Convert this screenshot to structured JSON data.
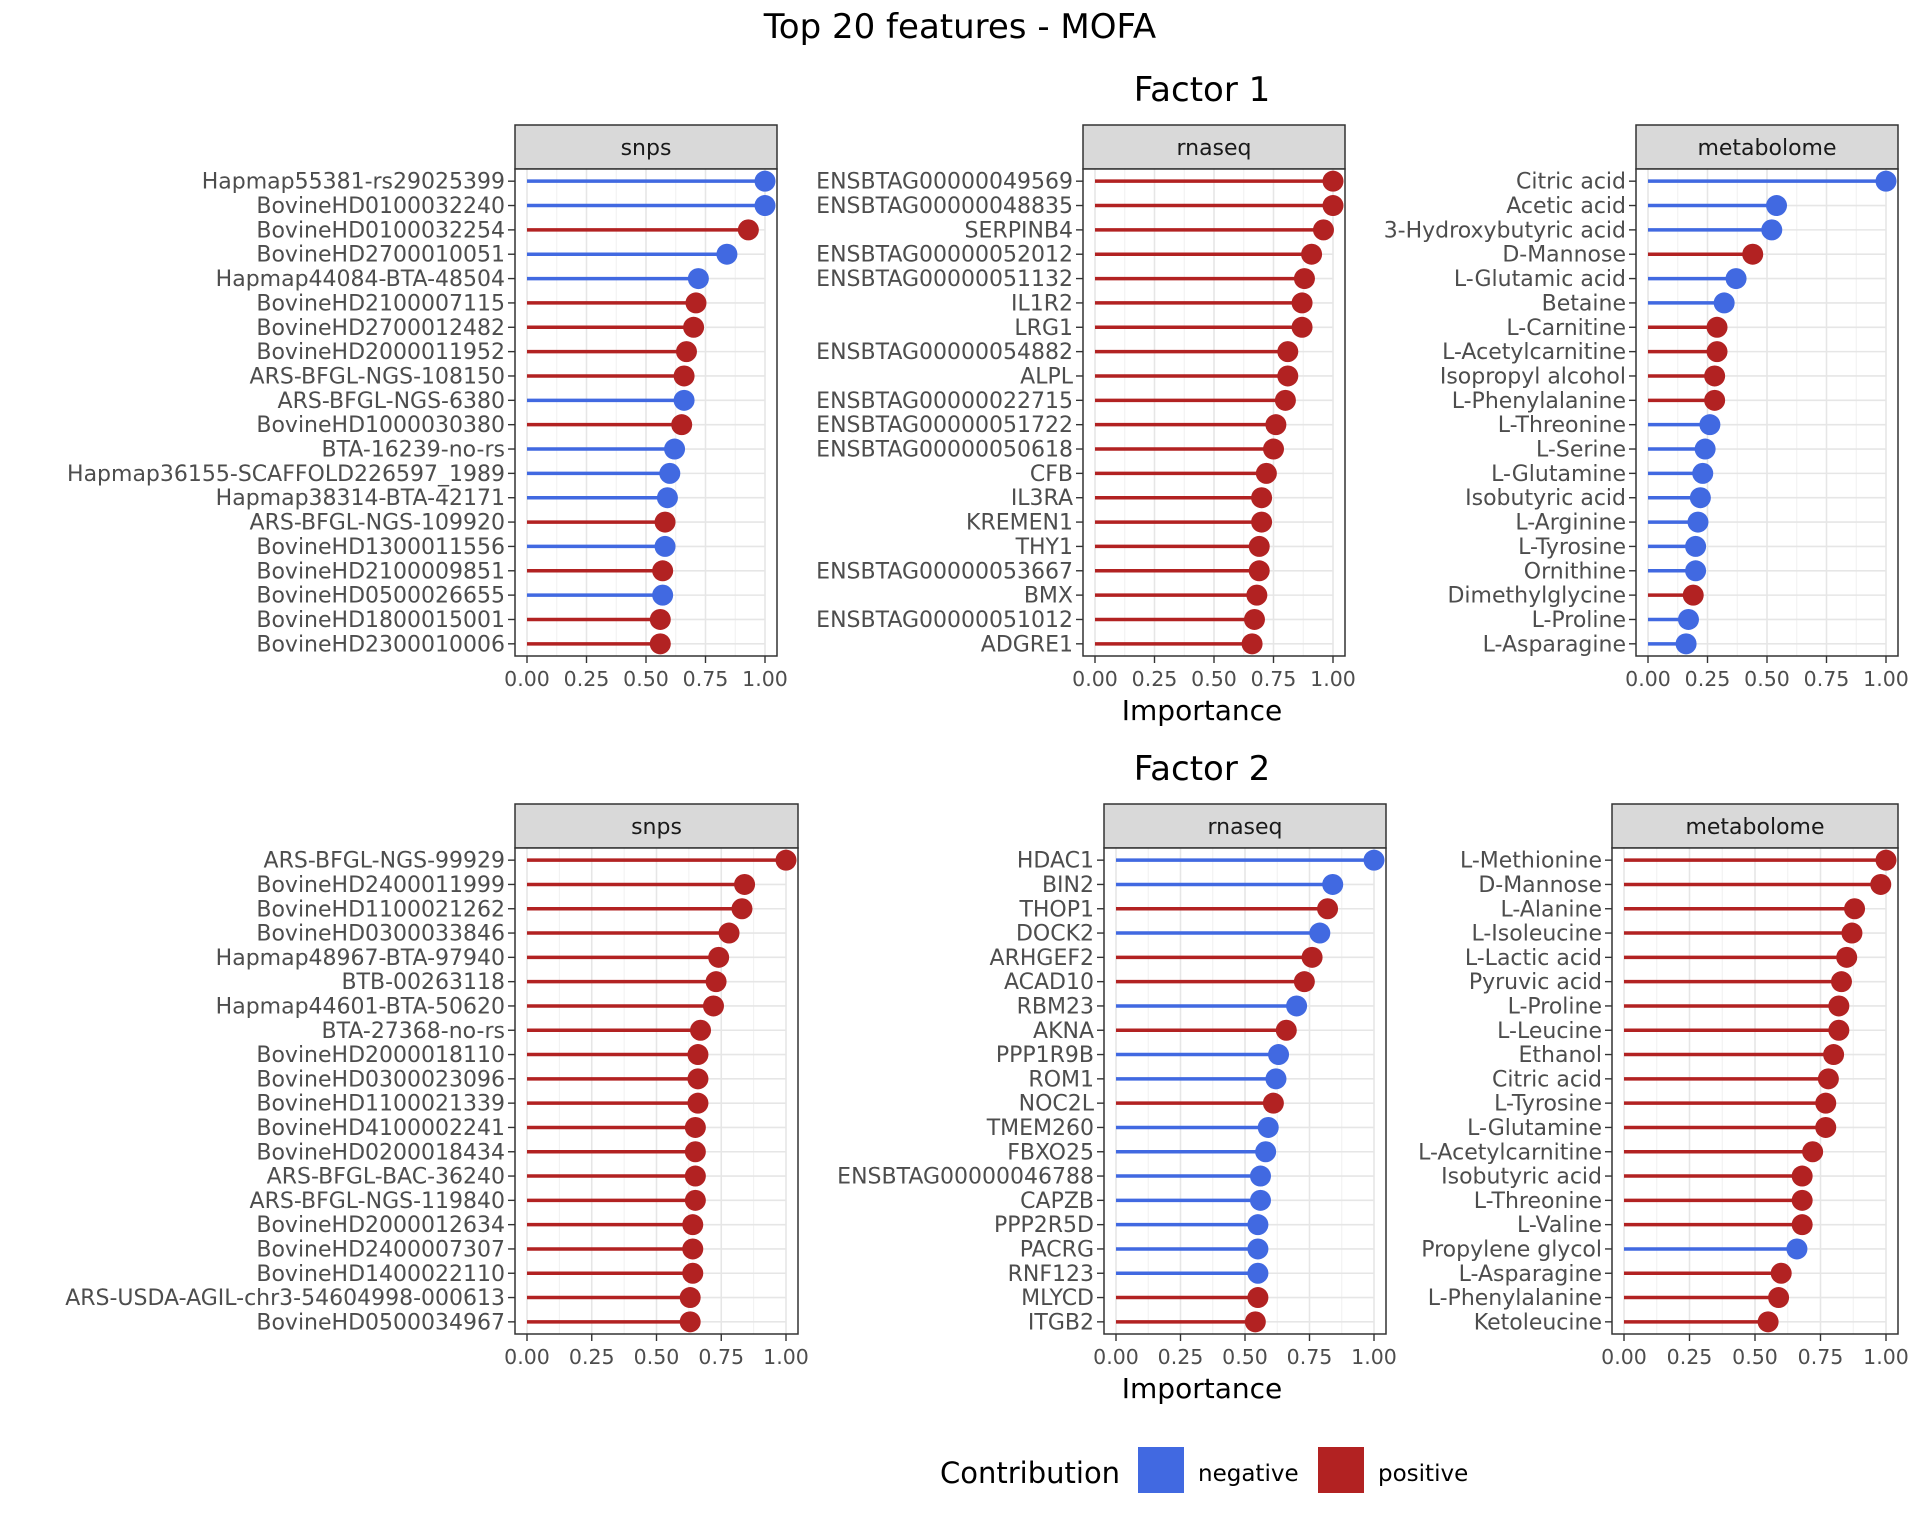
{
  "title": "Top 20 features - MOFA",
  "colors": {
    "negative": "#4169e1",
    "positive": "#b22222"
  },
  "legend": {
    "title": "Contribution",
    "negative_label": "negative",
    "positive_label": "positive"
  },
  "chart_data": [
    {
      "type": "lollipop",
      "factor": "Factor 1",
      "xlabel": "Importance",
      "xlim": [
        0,
        1
      ],
      "ticks": [
        "0.00",
        "0.25",
        "0.50",
        "0.75",
        "1.00"
      ],
      "panels": [
        {
          "name": "snps",
          "features": [
            {
              "label": "Hapmap55381-rs29025399",
              "value": 1.0,
              "sign": "negative"
            },
            {
              "label": "BovineHD0100032240",
              "value": 1.0,
              "sign": "negative"
            },
            {
              "label": "BovineHD0100032254",
              "value": 0.93,
              "sign": "positive"
            },
            {
              "label": "BovineHD2700010051",
              "value": 0.84,
              "sign": "negative"
            },
            {
              "label": "Hapmap44084-BTA-48504",
              "value": 0.72,
              "sign": "negative"
            },
            {
              "label": "BovineHD2100007115",
              "value": 0.71,
              "sign": "positive"
            },
            {
              "label": "BovineHD2700012482",
              "value": 0.7,
              "sign": "positive"
            },
            {
              "label": "BovineHD2000011952",
              "value": 0.67,
              "sign": "positive"
            },
            {
              "label": "ARS-BFGL-NGS-108150",
              "value": 0.66,
              "sign": "positive"
            },
            {
              "label": "ARS-BFGL-NGS-6380",
              "value": 0.66,
              "sign": "negative"
            },
            {
              "label": "BovineHD1000030380",
              "value": 0.65,
              "sign": "positive"
            },
            {
              "label": "BTA-16239-no-rs",
              "value": 0.62,
              "sign": "negative"
            },
            {
              "label": "Hapmap36155-SCAFFOLD226597_1989",
              "value": 0.6,
              "sign": "negative"
            },
            {
              "label": "Hapmap38314-BTA-42171",
              "value": 0.59,
              "sign": "negative"
            },
            {
              "label": "ARS-BFGL-NGS-109920",
              "value": 0.58,
              "sign": "positive"
            },
            {
              "label": "BovineHD1300011556",
              "value": 0.58,
              "sign": "negative"
            },
            {
              "label": "BovineHD2100009851",
              "value": 0.57,
              "sign": "positive"
            },
            {
              "label": "BovineHD0500026655",
              "value": 0.57,
              "sign": "negative"
            },
            {
              "label": "BovineHD1800015001",
              "value": 0.56,
              "sign": "positive"
            },
            {
              "label": "BovineHD2300010006",
              "value": 0.56,
              "sign": "positive"
            }
          ]
        },
        {
          "name": "rnaseq",
          "features": [
            {
              "label": "ENSBTAG00000049569",
              "value": 1.0,
              "sign": "positive"
            },
            {
              "label": "ENSBTAG00000048835",
              "value": 1.0,
              "sign": "positive"
            },
            {
              "label": "SERPINB4",
              "value": 0.96,
              "sign": "positive"
            },
            {
              "label": "ENSBTAG00000052012",
              "value": 0.91,
              "sign": "positive"
            },
            {
              "label": "ENSBTAG00000051132",
              "value": 0.88,
              "sign": "positive"
            },
            {
              "label": "IL1R2",
              "value": 0.87,
              "sign": "positive"
            },
            {
              "label": "LRG1",
              "value": 0.87,
              "sign": "positive"
            },
            {
              "label": "ENSBTAG00000054882",
              "value": 0.81,
              "sign": "positive"
            },
            {
              "label": "ALPL",
              "value": 0.81,
              "sign": "positive"
            },
            {
              "label": "ENSBTAG00000022715",
              "value": 0.8,
              "sign": "positive"
            },
            {
              "label": "ENSBTAG00000051722",
              "value": 0.76,
              "sign": "positive"
            },
            {
              "label": "ENSBTAG00000050618",
              "value": 0.75,
              "sign": "positive"
            },
            {
              "label": "CFB",
              "value": 0.72,
              "sign": "positive"
            },
            {
              "label": "IL3RA",
              "value": 0.7,
              "sign": "positive"
            },
            {
              "label": "KREMEN1",
              "value": 0.7,
              "sign": "positive"
            },
            {
              "label": "THY1",
              "value": 0.69,
              "sign": "positive"
            },
            {
              "label": "ENSBTAG00000053667",
              "value": 0.69,
              "sign": "positive"
            },
            {
              "label": "BMX",
              "value": 0.68,
              "sign": "positive"
            },
            {
              "label": "ENSBTAG00000051012",
              "value": 0.67,
              "sign": "positive"
            },
            {
              "label": "ADGRE1",
              "value": 0.66,
              "sign": "positive"
            }
          ]
        },
        {
          "name": "metabolome",
          "features": [
            {
              "label": "Citric acid",
              "value": 1.0,
              "sign": "negative"
            },
            {
              "label": "Acetic acid",
              "value": 0.54,
              "sign": "negative"
            },
            {
              "label": "3-Hydroxybutyric acid",
              "value": 0.52,
              "sign": "negative"
            },
            {
              "label": "D-Mannose",
              "value": 0.44,
              "sign": "positive"
            },
            {
              "label": "L-Glutamic acid",
              "value": 0.37,
              "sign": "negative"
            },
            {
              "label": "Betaine",
              "value": 0.32,
              "sign": "negative"
            },
            {
              "label": "L-Carnitine",
              "value": 0.29,
              "sign": "positive"
            },
            {
              "label": "L-Acetylcarnitine",
              "value": 0.29,
              "sign": "positive"
            },
            {
              "label": "Isopropyl alcohol",
              "value": 0.28,
              "sign": "positive"
            },
            {
              "label": "L-Phenylalanine",
              "value": 0.28,
              "sign": "positive"
            },
            {
              "label": "L-Threonine",
              "value": 0.26,
              "sign": "negative"
            },
            {
              "label": "L-Serine",
              "value": 0.24,
              "sign": "negative"
            },
            {
              "label": "L-Glutamine",
              "value": 0.23,
              "sign": "negative"
            },
            {
              "label": "Isobutyric acid",
              "value": 0.22,
              "sign": "negative"
            },
            {
              "label": "L-Arginine",
              "value": 0.21,
              "sign": "negative"
            },
            {
              "label": "L-Tyrosine",
              "value": 0.2,
              "sign": "negative"
            },
            {
              "label": "Ornithine",
              "value": 0.2,
              "sign": "negative"
            },
            {
              "label": "Dimethylglycine",
              "value": 0.19,
              "sign": "positive"
            },
            {
              "label": "L-Proline",
              "value": 0.17,
              "sign": "negative"
            },
            {
              "label": "L-Asparagine",
              "value": 0.16,
              "sign": "negative"
            }
          ]
        }
      ]
    },
    {
      "type": "lollipop",
      "factor": "Factor 2",
      "xlabel": "Importance",
      "xlim": [
        0,
        1
      ],
      "ticks": [
        "0.00",
        "0.25",
        "0.50",
        "0.75",
        "1.00"
      ],
      "panels": [
        {
          "name": "snps",
          "features": [
            {
              "label": "ARS-BFGL-NGS-99929",
              "value": 1.0,
              "sign": "positive"
            },
            {
              "label": "BovineHD2400011999",
              "value": 0.84,
              "sign": "positive"
            },
            {
              "label": "BovineHD1100021262",
              "value": 0.83,
              "sign": "positive"
            },
            {
              "label": "BovineHD0300033846",
              "value": 0.78,
              "sign": "positive"
            },
            {
              "label": "Hapmap48967-BTA-97940",
              "value": 0.74,
              "sign": "positive"
            },
            {
              "label": "BTB-00263118",
              "value": 0.73,
              "sign": "positive"
            },
            {
              "label": "Hapmap44601-BTA-50620",
              "value": 0.72,
              "sign": "positive"
            },
            {
              "label": "BTA-27368-no-rs",
              "value": 0.67,
              "sign": "positive"
            },
            {
              "label": "BovineHD2000018110",
              "value": 0.66,
              "sign": "positive"
            },
            {
              "label": "BovineHD0300023096",
              "value": 0.66,
              "sign": "positive"
            },
            {
              "label": "BovineHD1100021339",
              "value": 0.66,
              "sign": "positive"
            },
            {
              "label": "BovineHD4100002241",
              "value": 0.65,
              "sign": "positive"
            },
            {
              "label": "BovineHD0200018434",
              "value": 0.65,
              "sign": "positive"
            },
            {
              "label": "ARS-BFGL-BAC-36240",
              "value": 0.65,
              "sign": "positive"
            },
            {
              "label": "ARS-BFGL-NGS-119840",
              "value": 0.65,
              "sign": "positive"
            },
            {
              "label": "BovineHD2000012634",
              "value": 0.64,
              "sign": "positive"
            },
            {
              "label": "BovineHD2400007307",
              "value": 0.64,
              "sign": "positive"
            },
            {
              "label": "BovineHD1400022110",
              "value": 0.64,
              "sign": "positive"
            },
            {
              "label": "ARS-USDA-AGIL-chr3-54604998-000613",
              "value": 0.63,
              "sign": "positive"
            },
            {
              "label": "BovineHD0500034967",
              "value": 0.63,
              "sign": "positive"
            }
          ]
        },
        {
          "name": "rnaseq",
          "features": [
            {
              "label": "HDAC1",
              "value": 1.0,
              "sign": "negative"
            },
            {
              "label": "BIN2",
              "value": 0.84,
              "sign": "negative"
            },
            {
              "label": "THOP1",
              "value": 0.82,
              "sign": "positive"
            },
            {
              "label": "DOCK2",
              "value": 0.79,
              "sign": "negative"
            },
            {
              "label": "ARHGEF2",
              "value": 0.76,
              "sign": "positive"
            },
            {
              "label": "ACAD10",
              "value": 0.73,
              "sign": "positive"
            },
            {
              "label": "RBM23",
              "value": 0.7,
              "sign": "negative"
            },
            {
              "label": "AKNA",
              "value": 0.66,
              "sign": "positive"
            },
            {
              "label": "PPP1R9B",
              "value": 0.63,
              "sign": "negative"
            },
            {
              "label": "ROM1",
              "value": 0.62,
              "sign": "negative"
            },
            {
              "label": "NOC2L",
              "value": 0.61,
              "sign": "positive"
            },
            {
              "label": "TMEM260",
              "value": 0.59,
              "sign": "negative"
            },
            {
              "label": "FBXO25",
              "value": 0.58,
              "sign": "negative"
            },
            {
              "label": "ENSBTAG00000046788",
              "value": 0.56,
              "sign": "negative"
            },
            {
              "label": "CAPZB",
              "value": 0.56,
              "sign": "negative"
            },
            {
              "label": "PPP2R5D",
              "value": 0.55,
              "sign": "negative"
            },
            {
              "label": "PACRG",
              "value": 0.55,
              "sign": "negative"
            },
            {
              "label": "RNF123",
              "value": 0.55,
              "sign": "negative"
            },
            {
              "label": "MLYCD",
              "value": 0.55,
              "sign": "positive"
            },
            {
              "label": "ITGB2",
              "value": 0.54,
              "sign": "positive"
            }
          ]
        },
        {
          "name": "metabolome",
          "features": [
            {
              "label": "L-Methionine",
              "value": 1.0,
              "sign": "positive"
            },
            {
              "label": "D-Mannose",
              "value": 0.98,
              "sign": "positive"
            },
            {
              "label": "L-Alanine",
              "value": 0.88,
              "sign": "positive"
            },
            {
              "label": "L-Isoleucine",
              "value": 0.87,
              "sign": "positive"
            },
            {
              "label": "L-Lactic acid",
              "value": 0.85,
              "sign": "positive"
            },
            {
              "label": "Pyruvic acid",
              "value": 0.83,
              "sign": "positive"
            },
            {
              "label": "L-Proline",
              "value": 0.82,
              "sign": "positive"
            },
            {
              "label": "L-Leucine",
              "value": 0.82,
              "sign": "positive"
            },
            {
              "label": "Ethanol",
              "value": 0.8,
              "sign": "positive"
            },
            {
              "label": "Citric acid",
              "value": 0.78,
              "sign": "positive"
            },
            {
              "label": "L-Tyrosine",
              "value": 0.77,
              "sign": "positive"
            },
            {
              "label": "L-Glutamine",
              "value": 0.77,
              "sign": "positive"
            },
            {
              "label": "L-Acetylcarnitine",
              "value": 0.72,
              "sign": "positive"
            },
            {
              "label": "Isobutyric acid",
              "value": 0.68,
              "sign": "positive"
            },
            {
              "label": "L-Threonine",
              "value": 0.68,
              "sign": "positive"
            },
            {
              "label": "L-Valine",
              "value": 0.68,
              "sign": "positive"
            },
            {
              "label": "Propylene glycol",
              "value": 0.66,
              "sign": "negative"
            },
            {
              "label": "L-Asparagine",
              "value": 0.6,
              "sign": "positive"
            },
            {
              "label": "L-Phenylalanine",
              "value": 0.59,
              "sign": "positive"
            },
            {
              "label": "Ketoleucine",
              "value": 0.55,
              "sign": "positive"
            }
          ]
        }
      ]
    }
  ]
}
